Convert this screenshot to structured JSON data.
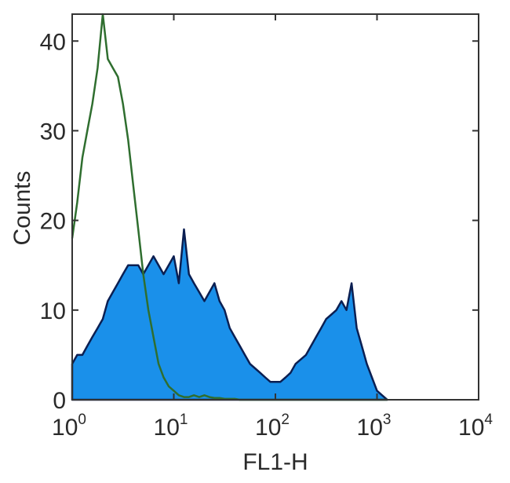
{
  "chart_data": {
    "type": "area",
    "xscale": "log",
    "xlabel": "FL1-H",
    "ylabel": "Counts",
    "xlim": [
      1,
      10000
    ],
    "ylim": [
      0,
      43
    ],
    "grid": false,
    "x_ticks": [
      {
        "base": "10",
        "exp": "0",
        "value": 1
      },
      {
        "base": "10",
        "exp": "1",
        "value": 10
      },
      {
        "base": "10",
        "exp": "2",
        "value": 100
      },
      {
        "base": "10",
        "exp": "3",
        "value": 1000
      },
      {
        "base": "10",
        "exp": "4",
        "value": 10000
      }
    ],
    "y_ticks": [
      "0",
      "10",
      "20",
      "30",
      "40"
    ],
    "x": [
      1,
      1.12,
      1.26,
      1.41,
      1.58,
      1.78,
      2,
      2.24,
      2.51,
      2.82,
      3.16,
      3.55,
      3.98,
      4.47,
      5.01,
      5.62,
      6.31,
      7.08,
      7.94,
      8.91,
      10,
      11.2,
      12.6,
      14.1,
      15.8,
      17.8,
      20,
      22.4,
      25.1,
      28.2,
      31.6,
      35.5,
      39.8,
      44.7,
      50.1,
      56.2,
      63.1,
      70.8,
      79.4,
      89.1,
      100,
      112,
      126,
      141,
      158,
      178,
      200,
      224,
      251,
      282,
      316,
      355,
      398,
      447,
      501,
      562,
      631,
      708,
      794,
      891,
      1000,
      1122,
      1259
    ],
    "series": [
      {
        "style": "filled",
        "fill": "#1a90ea",
        "stroke": "#0b1f52",
        "values": [
          4,
          5,
          5,
          6,
          7,
          8,
          9,
          11,
          12,
          13,
          14,
          15,
          15,
          15,
          14,
          15,
          16,
          15,
          14,
          15,
          16,
          13,
          19,
          14,
          13,
          12,
          11,
          12,
          13,
          11,
          10,
          8,
          7,
          6,
          5,
          4,
          3.5,
          3,
          2.5,
          2,
          2,
          2,
          2.5,
          3,
          4,
          4.5,
          5,
          6,
          7,
          8,
          9,
          9.5,
          10,
          11,
          10,
          13,
          8,
          6,
          4,
          2.5,
          1,
          0.5,
          0
        ]
      },
      {
        "style": "line",
        "stroke": "#2f6e2f",
        "values": [
          18,
          22,
          27,
          30,
          33,
          37,
          43,
          38,
          37,
          36,
          33,
          29,
          24,
          19,
          14,
          10,
          7,
          4,
          2.5,
          1.5,
          1,
          0.5,
          0.3,
          0.3,
          0.5,
          0.3,
          0.5,
          0.3,
          0.2,
          0.2,
          0.1,
          0.1,
          0.1,
          0,
          0,
          0,
          0,
          0,
          0,
          0,
          0,
          0,
          0,
          0,
          0,
          0,
          0,
          0,
          0,
          0,
          0,
          0,
          0,
          0,
          0,
          0,
          0,
          0,
          0,
          0,
          0,
          0,
          0
        ]
      }
    ]
  }
}
